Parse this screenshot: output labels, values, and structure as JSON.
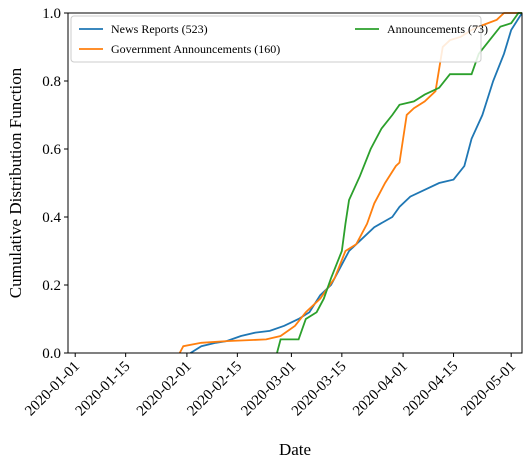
{
  "chart_data": {
    "type": "line",
    "xlabel": "Date",
    "ylabel": "Cumulative Distribution Function",
    "xlim": [
      "2019-12-30",
      "2020-05-04"
    ],
    "xticks": [
      "2020-01-01",
      "2020-01-15",
      "2020-02-01",
      "2020-02-15",
      "2020-03-01",
      "2020-03-15",
      "2020-04-01",
      "2020-04-15",
      "2020-05-01"
    ],
    "ylim": [
      0,
      1
    ],
    "yticks": [
      {
        "value": 0,
        "label": "0.0"
      },
      {
        "value": 0.2,
        "label": "0.2"
      },
      {
        "value": 0.4,
        "label": "0.4"
      },
      {
        "value": 0.6,
        "label": "0.6"
      },
      {
        "value": 0.8,
        "label": "0.8"
      },
      {
        "value": 1,
        "label": "1.0"
      }
    ],
    "legend": "upper left",
    "series": [
      {
        "name": "News Reports (523)",
        "color": "#1f77b4",
        "x": [
          "2020-02-02",
          "2020-02-05",
          "2020-02-09",
          "2020-02-12",
          "2020-02-16",
          "2020-02-20",
          "2020-02-24",
          "2020-02-28",
          "2020-03-03",
          "2020-03-06",
          "2020-03-09",
          "2020-03-12",
          "2020-03-15",
          "2020-03-17",
          "2020-03-20",
          "2020-03-24",
          "2020-03-29",
          "2020-03-31",
          "2020-04-03",
          "2020-04-07",
          "2020-04-11",
          "2020-04-15",
          "2020-04-18",
          "2020-04-20",
          "2020-04-23",
          "2020-04-26",
          "2020-04-29",
          "2020-05-01",
          "2020-05-04"
        ],
        "values": [
          0,
          0.02,
          0.03,
          0.035,
          0.05,
          0.06,
          0.065,
          0.08,
          0.1,
          0.12,
          0.17,
          0.2,
          0.26,
          0.3,
          0.33,
          0.37,
          0.4,
          0.43,
          0.46,
          0.48,
          0.5,
          0.51,
          0.55,
          0.63,
          0.7,
          0.8,
          0.88,
          0.95,
          1.0
        ]
      },
      {
        "name": "Government Announcements (160)",
        "color": "#ff7f0e",
        "x": [
          "2020-01-30",
          "2020-01-31",
          "2020-02-05",
          "2020-02-12",
          "2020-02-23",
          "2020-02-27",
          "2020-03-02",
          "2020-03-05",
          "2020-03-09",
          "2020-03-13",
          "2020-03-16",
          "2020-03-19",
          "2020-03-22",
          "2020-03-24",
          "2020-03-27",
          "2020-03-30",
          "2020-03-31",
          "2020-04-02",
          "2020-04-04",
          "2020-04-07",
          "2020-04-10",
          "2020-04-12",
          "2020-04-14",
          "2020-04-17",
          "2020-04-20",
          "2020-04-22",
          "2020-04-27",
          "2020-04-29",
          "2020-05-04"
        ],
        "values": [
          0,
          0.02,
          0.03,
          0.035,
          0.04,
          0.05,
          0.08,
          0.12,
          0.16,
          0.22,
          0.3,
          0.32,
          0.38,
          0.44,
          0.5,
          0.55,
          0.56,
          0.7,
          0.72,
          0.74,
          0.77,
          0.9,
          0.92,
          0.93,
          0.95,
          0.96,
          0.98,
          1.0,
          1.0
        ]
      },
      {
        "name": "Announcements (73)",
        "color": "#2ca02c",
        "x": [
          "2020-02-26",
          "2020-02-27",
          "2020-03-03",
          "2020-03-05",
          "2020-03-08",
          "2020-03-10",
          "2020-03-12",
          "2020-03-15",
          "2020-03-16",
          "2020-03-17",
          "2020-03-20",
          "2020-03-23",
          "2020-03-26",
          "2020-03-29",
          "2020-03-31",
          "2020-04-04",
          "2020-04-07",
          "2020-04-11",
          "2020-04-14",
          "2020-04-20",
          "2020-04-22",
          "2020-04-25",
          "2020-04-28",
          "2020-05-01",
          "2020-05-03",
          "2020-05-04"
        ],
        "values": [
          0,
          0.04,
          0.04,
          0.1,
          0.12,
          0.16,
          0.22,
          0.3,
          0.38,
          0.45,
          0.52,
          0.6,
          0.66,
          0.7,
          0.73,
          0.74,
          0.76,
          0.78,
          0.82,
          0.82,
          0.88,
          0.92,
          0.96,
          0.97,
          1.0,
          1.0
        ]
      }
    ]
  }
}
